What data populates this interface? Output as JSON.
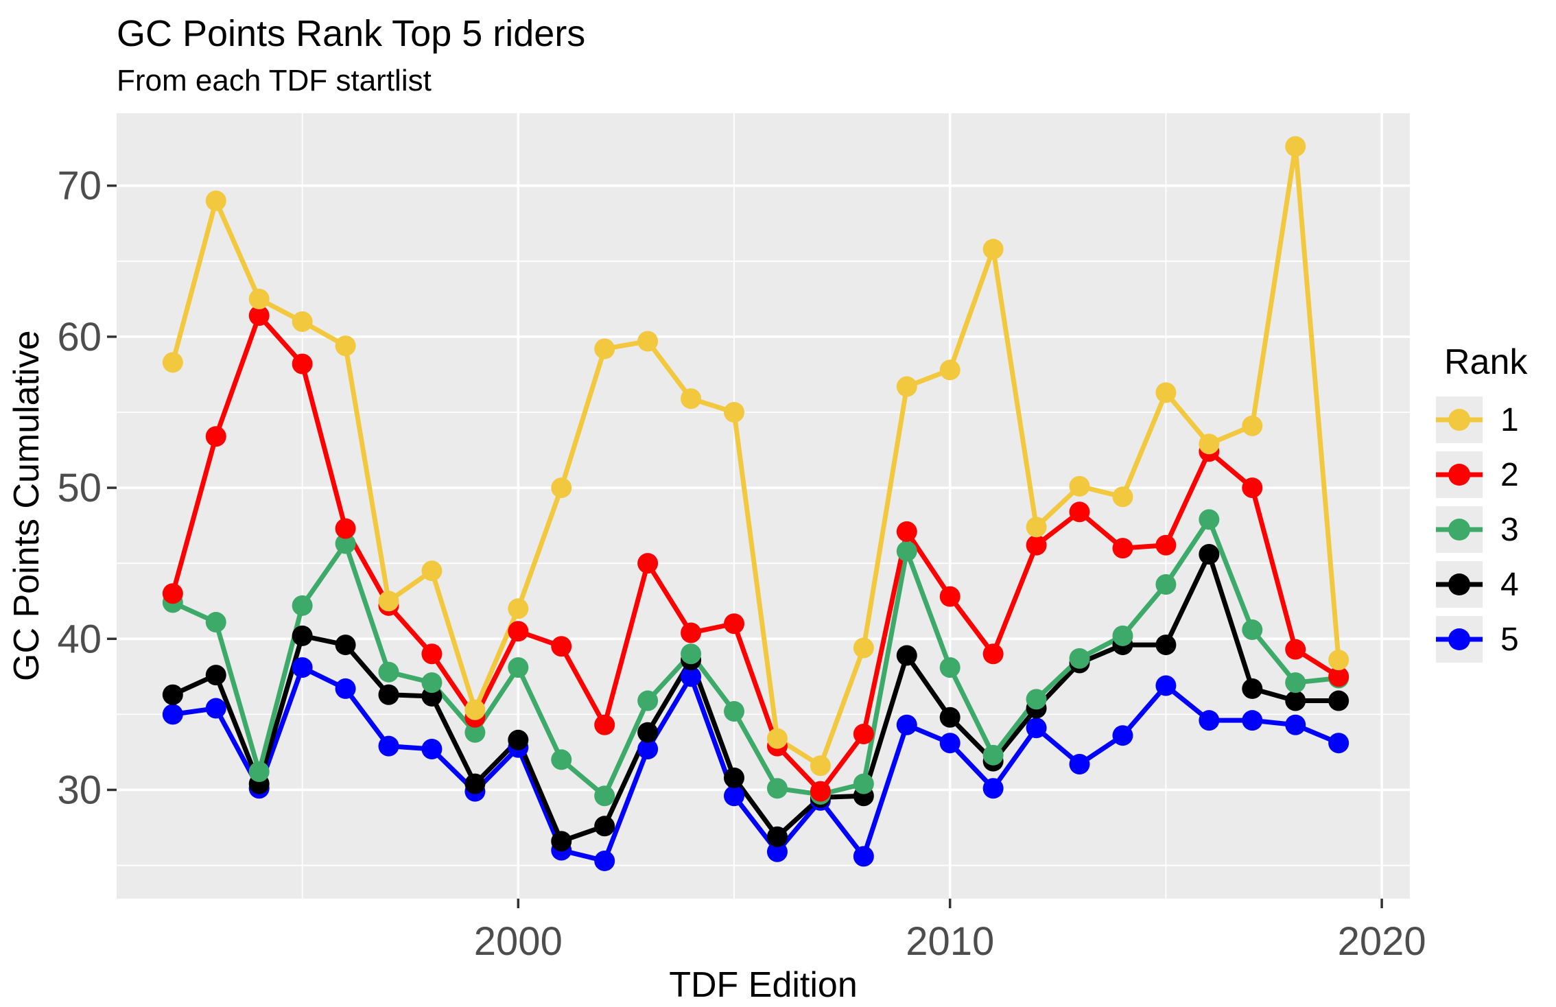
{
  "title": "GC Points Rank Top 5 riders",
  "subtitle": "From each TDF startlist",
  "chart_data": {
    "type": "line",
    "title": "GC Points Rank Top 5 riders",
    "subtitle": "From each TDF startlist",
    "xlabel": "TDF Edition",
    "ylabel": "GC Points Cumulative",
    "legend_title": "Rank",
    "legend_position": "right",
    "grid": true,
    "panel_bg": "#EBEBEB",
    "grid_color": "#FFFFFF",
    "tick_color": "#333333",
    "tick_label_color": "#4D4D4D",
    "xlim": [
      1990.7,
      2020.65
    ],
    "ylim": [
      22.8,
      74.8
    ],
    "x_major_ticks": [
      2000,
      2010,
      2020
    ],
    "x_minor_ticks": [
      1995,
      2005,
      2015
    ],
    "y_major_ticks": [
      30,
      40,
      50,
      60,
      70
    ],
    "y_minor_ticks": [
      25,
      35,
      45,
      55,
      65
    ],
    "x": [
      1992,
      1993,
      1994,
      1995,
      1996,
      1997,
      1998,
      1999,
      2000,
      2001,
      2002,
      2003,
      2004,
      2005,
      2006,
      2007,
      2008,
      2009,
      2010,
      2011,
      2012,
      2013,
      2014,
      2015,
      2016,
      2017,
      2018,
      2019
    ],
    "series": [
      {
        "name": "1",
        "color": "#F2C83E",
        "values": [
          58.3,
          69.0,
          62.5,
          61.0,
          59.4,
          42.5,
          44.5,
          35.3,
          42.0,
          50.0,
          59.2,
          59.7,
          55.9,
          55.0,
          33.4,
          31.6,
          39.4,
          56.7,
          57.8,
          65.8,
          47.4,
          50.1,
          49.4,
          56.3,
          52.9,
          54.1,
          72.6,
          38.6
        ]
      },
      {
        "name": "2",
        "color": "#FF0000",
        "values": [
          43.0,
          53.4,
          61.4,
          58.2,
          47.3,
          42.2,
          39.0,
          34.8,
          40.5,
          39.5,
          34.3,
          45.0,
          40.4,
          41.0,
          32.9,
          29.9,
          33.7,
          47.1,
          42.8,
          39.0,
          46.2,
          48.4,
          46.0,
          46.2,
          52.4,
          50.0,
          39.3,
          37.5
        ]
      },
      {
        "name": "3",
        "color": "#3DAA6A",
        "values": [
          42.4,
          41.1,
          31.2,
          42.2,
          46.3,
          37.8,
          37.1,
          33.8,
          38.1,
          32.0,
          29.6,
          35.9,
          39.0,
          35.2,
          30.1,
          29.7,
          30.4,
          45.8,
          38.1,
          32.3,
          36.0,
          38.7,
          40.2,
          43.6,
          47.9,
          40.6,
          37.1,
          37.4
        ]
      },
      {
        "name": "4",
        "color": "#000000",
        "values": [
          36.3,
          37.6,
          30.4,
          40.2,
          39.6,
          36.3,
          36.2,
          30.4,
          33.3,
          26.6,
          27.6,
          33.8,
          38.6,
          30.8,
          26.9,
          29.5,
          29.6,
          38.9,
          34.8,
          31.9,
          35.4,
          38.4,
          39.6,
          39.6,
          45.6,
          36.7,
          35.9,
          35.9
        ]
      },
      {
        "name": "5",
        "color": "#0000FF",
        "values": [
          35.0,
          35.4,
          30.1,
          38.1,
          36.7,
          32.9,
          32.7,
          29.9,
          32.8,
          26.0,
          25.3,
          32.7,
          37.5,
          29.6,
          25.9,
          29.3,
          25.6,
          34.3,
          33.1,
          30.1,
          34.1,
          31.7,
          33.6,
          36.9,
          34.6,
          34.6,
          34.3,
          33.1
        ]
      }
    ],
    "point_radius": 15,
    "line_width": 7
  }
}
